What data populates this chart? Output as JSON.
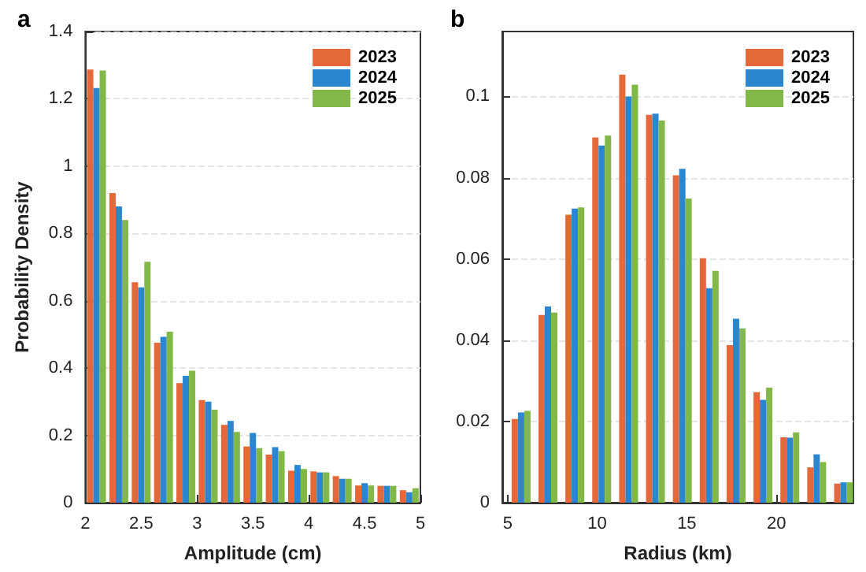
{
  "chart_data": [
    {
      "type": "bar",
      "title": "a",
      "xlabel": "Amplitude (cm)",
      "ylabel": "Probability Density",
      "x": [
        2.1,
        2.3,
        2.5,
        2.7,
        2.9,
        3.1,
        3.3,
        3.5,
        3.7,
        3.9,
        4.1,
        4.3,
        4.5,
        4.7,
        4.9
      ],
      "series": [
        {
          "name": "2023",
          "color": "#e5683a",
          "values": [
            1.287,
            0.92,
            0.655,
            0.475,
            0.355,
            0.305,
            0.231,
            0.167,
            0.143,
            0.095,
            0.093,
            0.079,
            0.051,
            0.05,
            0.037
          ]
        },
        {
          "name": "2024",
          "color": "#2b86d0",
          "values": [
            1.232,
            0.88,
            0.64,
            0.493,
            0.377,
            0.3,
            0.243,
            0.207,
            0.165,
            0.112,
            0.09,
            0.071,
            0.058,
            0.05,
            0.031
          ]
        },
        {
          "name": "2025",
          "color": "#82b847",
          "values": [
            1.284,
            0.84,
            0.716,
            0.508,
            0.392,
            0.276,
            0.21,
            0.162,
            0.153,
            0.1,
            0.09,
            0.071,
            0.051,
            0.05,
            0.043
          ]
        }
      ],
      "xlim": [
        2,
        5
      ],
      "xticks": [
        2,
        2.5,
        3,
        3.5,
        4,
        4.5,
        5
      ],
      "ylim": [
        0,
        1.4
      ],
      "yticks": [
        0,
        0.2,
        0.4,
        0.6,
        0.8,
        1,
        1.2,
        1.4
      ],
      "grid": "y",
      "legend": "top right"
    },
    {
      "type": "bar",
      "title": "b",
      "xlabel": "Radius (km)",
      "x": [
        5.75,
        7.25,
        8.75,
        10.25,
        11.75,
        13.25,
        14.75,
        16.25,
        17.75,
        19.25,
        20.75,
        22.25,
        23.75
      ],
      "series": [
        {
          "name": "2023",
          "color": "#e5683a",
          "values": [
            0.0206,
            0.0462,
            0.0709,
            0.0899,
            0.1054,
            0.0955,
            0.0806,
            0.0602,
            0.0388,
            0.0272,
            0.0161,
            0.0087,
            0.0047
          ]
        },
        {
          "name": "2024",
          "color": "#2b86d0",
          "values": [
            0.0222,
            0.0483,
            0.0724,
            0.0879,
            0.1,
            0.0958,
            0.0822,
            0.0528,
            0.0453,
            0.0253,
            0.016,
            0.0119,
            0.005
          ]
        },
        {
          "name": "2025",
          "color": "#82b847",
          "values": [
            0.0226,
            0.0468,
            0.0727,
            0.0904,
            0.1029,
            0.0941,
            0.0749,
            0.0571,
            0.0429,
            0.0283,
            0.0173,
            0.01,
            0.005
          ]
        }
      ],
      "xlim": [
        4.7,
        24.3
      ],
      "xticks": [
        5,
        10,
        15,
        20
      ],
      "ylim": [
        0,
        0.116
      ],
      "yticks": [
        0,
        0.02,
        0.04,
        0.06,
        0.08,
        0.1
      ],
      "grid": "y",
      "legend": "top right"
    }
  ]
}
